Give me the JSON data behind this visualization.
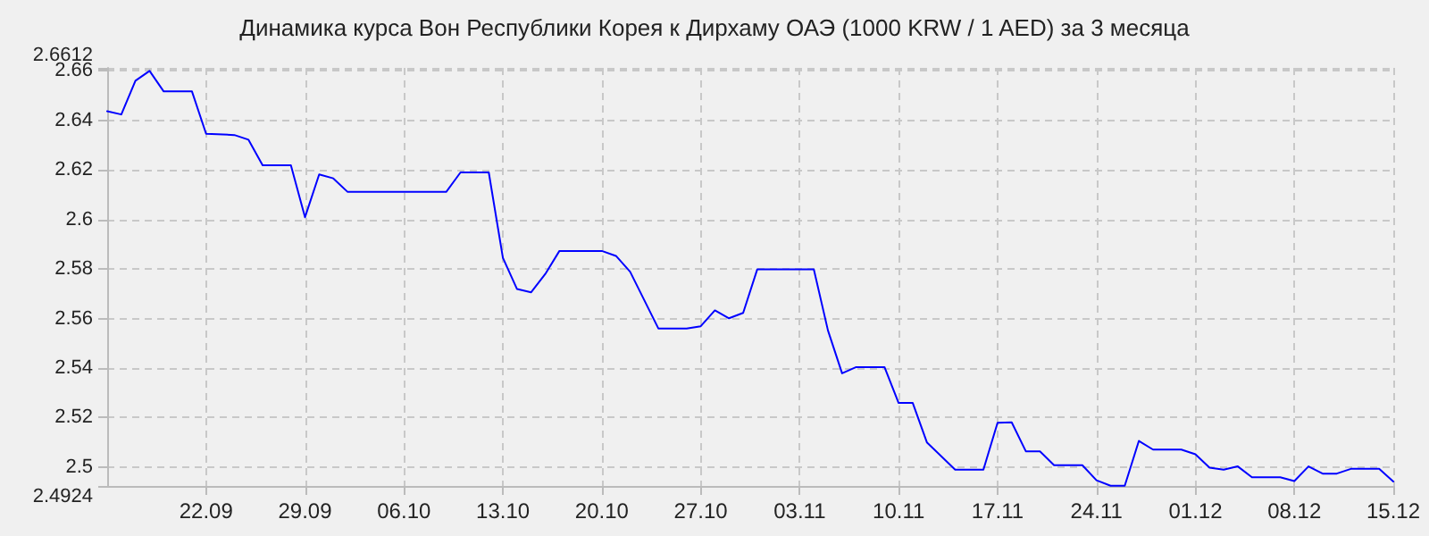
{
  "chart_data": {
    "type": "line",
    "title": "Динамика курса Вон Республики Корея к Дирхаму ОАЭ (1000 KRW / 1 AED) за 3 месяца",
    "x": [
      "--09-15",
      "--09-16",
      "--09-17",
      "--09-18",
      "--09-19",
      "--09-21",
      "--09-22",
      "--09-24",
      "--09-25",
      "--09-26",
      "--09-28",
      "--09-29",
      "--09-30",
      "--10-01",
      "--10-02",
      "--10-09",
      "--10-10",
      "--10-12",
      "--10-13",
      "--10-14",
      "--10-15",
      "--10-16",
      "--10-17",
      "--10-20",
      "--10-21",
      "--10-22",
      "--10-24",
      "--10-26",
      "--10-27",
      "--10-28",
      "--10-29",
      "--10-30",
      "--10-31",
      "--11-04",
      "--11-05",
      "--11-06",
      "--11-07",
      "--11-09",
      "--11-10",
      "--11-11",
      "--11-12",
      "--11-14",
      "--11-16",
      "--11-17",
      "--11-18",
      "--11-19",
      "--11-20",
      "--11-21",
      "--11-23",
      "--11-24",
      "--11-25",
      "--11-26",
      "--11-27",
      "--11-28",
      "--11-30",
      "--12-01",
      "--12-02",
      "--12-03",
      "--12-04",
      "--12-05",
      "--12-07",
      "--12-08",
      "--12-09",
      "--12-10",
      "--12-11",
      "--12-12",
      "--12-14",
      "--12-15"
    ],
    "series": [
      {
        "color": "#0000ff",
        "values": [
          2.6437,
          2.6424,
          2.656,
          2.66,
          2.6517,
          2.6517,
          2.6346,
          2.6341,
          2.6322,
          2.6219,
          2.6219,
          2.6009,
          2.6182,
          2.6166,
          2.6112,
          2.6112,
          2.619,
          2.619,
          2.5845,
          2.5719,
          2.5706,
          2.578,
          2.5873,
          2.5873,
          2.5853,
          2.5789,
          2.556,
          2.556,
          2.5569,
          2.5633,
          2.5601,
          2.5623,
          2.5799,
          2.5799,
          2.5552,
          2.5379,
          2.5404,
          2.5404,
          2.5259,
          2.5259,
          2.51,
          2.499,
          2.499,
          2.5179,
          2.5181,
          2.5064,
          2.5064,
          2.5008,
          2.5008,
          2.4947,
          2.4925,
          2.4925,
          2.5106,
          2.5071,
          2.5071,
          2.5052,
          2.4998,
          2.499,
          2.5003,
          2.4959,
          2.4959,
          2.4944,
          2.5003,
          2.4974,
          2.4974,
          2.4993,
          2.4993,
          2.4942
        ]
      }
    ],
    "xlim": [
      "--09-15",
      "--12-15"
    ],
    "xticks": [
      {
        "value": "--09-22",
        "label": "22.09"
      },
      {
        "value": "--09-29",
        "label": "29.09"
      },
      {
        "value": "--10-06",
        "label": "06.10"
      },
      {
        "value": "--10-13",
        "label": "13.10"
      },
      {
        "value": "--10-20",
        "label": "20.10"
      },
      {
        "value": "--10-27",
        "label": "27.10"
      },
      {
        "value": "--11-03",
        "label": "03.11"
      },
      {
        "value": "--11-10",
        "label": "10.11"
      },
      {
        "value": "--11-17",
        "label": "17.11"
      },
      {
        "value": "--11-24",
        "label": "24.11"
      },
      {
        "value": "--12-01",
        "label": "01.12"
      },
      {
        "value": "--12-08",
        "label": "08.12"
      },
      {
        "value": "--12-15",
        "label": "15.12"
      }
    ],
    "ylim": [
      2.4924,
      2.6612
    ],
    "yticks": [
      2.4924,
      2.5,
      2.52,
      2.54,
      2.56,
      2.58,
      2.6,
      2.62,
      2.64,
      2.66,
      2.6612
    ],
    "grid": true,
    "marker": "none",
    "line_style": "solid"
  }
}
